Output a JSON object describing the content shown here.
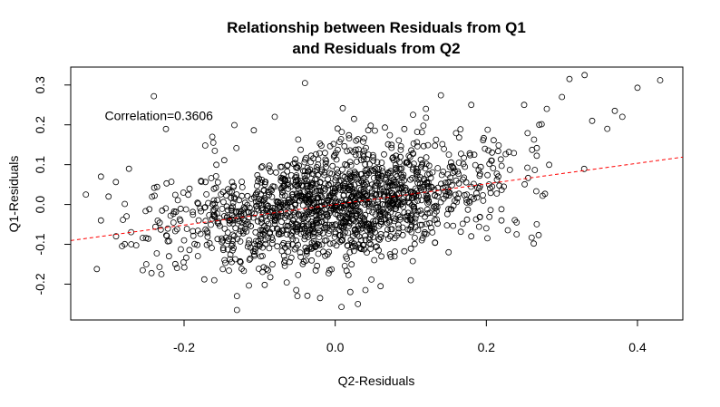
{
  "chart_data": {
    "type": "scatter",
    "title_lines": [
      "Relationship between Residuals from Q1",
      "and Residuals from Q2"
    ],
    "xlabel": "Q2-Residuals",
    "ylabel": "Q1-Residuals",
    "xlim": [
      -0.35,
      0.46
    ],
    "ylim": [
      -0.29,
      0.345
    ],
    "x_ticks": [
      {
        "value": -0.2,
        "label": "-0.2"
      },
      {
        "value": 0.0,
        "label": "0.0"
      },
      {
        "value": 0.2,
        "label": "0.2"
      },
      {
        "value": 0.4,
        "label": "0.4"
      }
    ],
    "y_ticks": [
      {
        "value": -0.2,
        "label": "-0.2"
      },
      {
        "value": -0.1,
        "label": "-0.1"
      },
      {
        "value": 0.0,
        "label": "0.0"
      },
      {
        "value": 0.1,
        "label": "0.1"
      },
      {
        "value": 0.2,
        "label": "0.2"
      },
      {
        "value": 0.3,
        "label": "0.3"
      }
    ],
    "annotation": {
      "text": "Correlation=0.3606",
      "x": -0.305,
      "y": 0.212
    },
    "regression_line": {
      "slope": 0.2586,
      "intercept": 0.0,
      "color": "#ff0000",
      "style": "dashed"
    },
    "point_style": {
      "shape": "open-circle",
      "color": "#000000"
    },
    "points": [
      [
        0.43,
        0.312
      ],
      [
        0.4,
        0.293
      ],
      [
        0.33,
        0.325
      ],
      [
        0.31,
        0.315
      ],
      [
        0.37,
        0.235
      ],
      [
        0.38,
        0.22
      ],
      [
        0.36,
        0.19
      ],
      [
        0.34,
        0.21
      ],
      [
        0.3,
        0.27
      ],
      [
        0.28,
        0.24
      ],
      [
        0.25,
        0.25
      ],
      [
        0.27,
        0.2
      ],
      [
        -0.04,
        0.305
      ],
      [
        -0.24,
        0.272
      ],
      [
        0.01,
        0.242
      ],
      [
        0.18,
        0.25
      ],
      [
        0.12,
        0.24
      ],
      [
        -0.08,
        0.22
      ],
      [
        0.26,
        -0.083
      ],
      [
        0.24,
        -0.075
      ],
      [
        0.2,
        -0.06
      ],
      [
        0.24,
        -0.045
      ],
      [
        0.22,
        -0.04
      ],
      [
        -0.31,
        -0.04
      ],
      [
        -0.29,
        -0.08
      ],
      [
        -0.33,
        0.025
      ],
      [
        -0.3,
        0.02
      ],
      [
        -0.31,
        0.07
      ],
      [
        -0.27,
        -0.1
      ],
      [
        -0.25,
        -0.15
      ],
      [
        -0.23,
        -0.175
      ],
      [
        -0.22,
        -0.13
      ],
      [
        -0.16,
        -0.19
      ],
      [
        -0.13,
        -0.23
      ],
      [
        -0.13,
        -0.265
      ],
      [
        0.03,
        -0.25
      ],
      [
        0.04,
        -0.215
      ],
      [
        -0.05,
        -0.23
      ],
      [
        0.1,
        -0.19
      ],
      [
        0.02,
        -0.22
      ],
      [
        -0.02,
        -0.235
      ],
      [
        0.06,
        -0.205
      ],
      [
        0.15,
        -0.12
      ],
      [
        0.18,
        -0.08
      ],
      [
        -0.2,
        -0.09
      ]
    ],
    "n_generated_points": 1650,
    "seed": 1337
  }
}
